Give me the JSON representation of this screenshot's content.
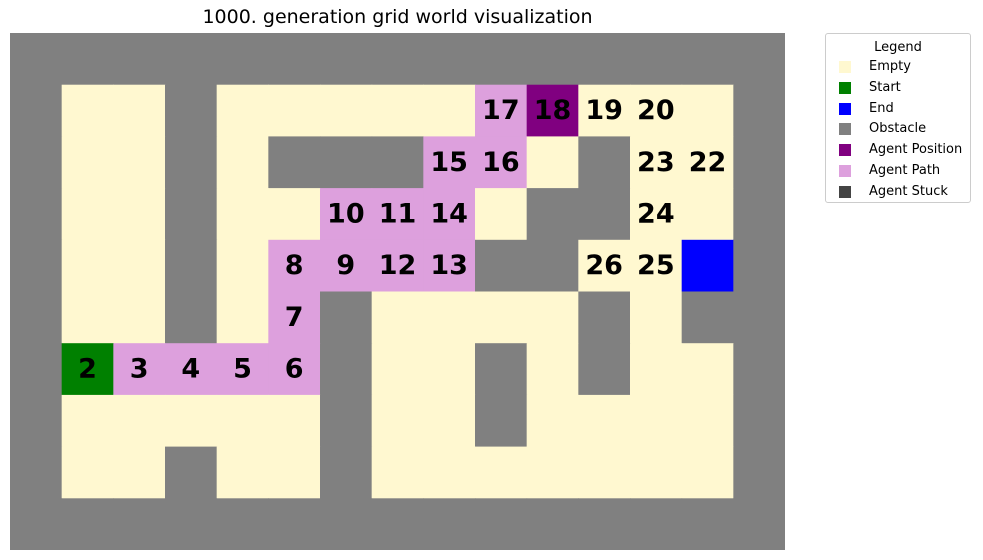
{
  "title": "1000. generation grid world visualization",
  "colors": {
    "empty": "#fff8d0",
    "start": "#008000",
    "end": "#0000ff",
    "obstacle": "#808080",
    "agent_position": "#800080",
    "agent_path": "#dda0dd",
    "agent_stuck": "#444444"
  },
  "grid": {
    "cols": 15,
    "rows": 10,
    "legend_key": {
      "O": "obstacle",
      "E": "empty",
      "S": "start",
      "G": "end",
      "A": "agent_position",
      "P": "agent_path"
    },
    "cells": [
      "OOOOOOOOOOOOOOO",
      "OEEOEEEEEPAEEEO",
      "OEEOEOOOPPEOEEO",
      "OEEOEEPPPEOOEEO",
      "OEEOEPPPPOOEEGO",
      "OEEOEPOEEEEOEOO",
      "OSPPPPOEEOEOEEO",
      "OEEEEEOEEOEEEEO",
      "OEEOEEOEEEEEEEO",
      "OOOOOOOOOOOOOOO"
    ],
    "labels": [
      {
        "row": 1,
        "col": 9,
        "text": "17"
      },
      {
        "row": 1,
        "col": 10,
        "text": "18"
      },
      {
        "row": 1,
        "col": 11,
        "text": "19"
      },
      {
        "row": 1,
        "col": 12,
        "text": "20"
      },
      {
        "row": 2,
        "col": 8,
        "text": "15"
      },
      {
        "row": 2,
        "col": 9,
        "text": "16"
      },
      {
        "row": 2,
        "col": 12,
        "text": "23"
      },
      {
        "row": 2,
        "col": 13,
        "text": "22"
      },
      {
        "row": 3,
        "col": 6,
        "text": "10"
      },
      {
        "row": 3,
        "col": 7,
        "text": "11"
      },
      {
        "row": 3,
        "col": 8,
        "text": "14"
      },
      {
        "row": 3,
        "col": 12,
        "text": "24"
      },
      {
        "row": 4,
        "col": 5,
        "text": "8"
      },
      {
        "row": 4,
        "col": 6,
        "text": "9"
      },
      {
        "row": 4,
        "col": 7,
        "text": "12"
      },
      {
        "row": 4,
        "col": 8,
        "text": "13"
      },
      {
        "row": 4,
        "col": 11,
        "text": "26"
      },
      {
        "row": 4,
        "col": 12,
        "text": "25"
      },
      {
        "row": 5,
        "col": 5,
        "text": "7"
      },
      {
        "row": 6,
        "col": 1,
        "text": "2"
      },
      {
        "row": 6,
        "col": 2,
        "text": "3"
      },
      {
        "row": 6,
        "col": 3,
        "text": "4"
      },
      {
        "row": 6,
        "col": 4,
        "text": "5"
      },
      {
        "row": 6,
        "col": 5,
        "text": "6"
      }
    ]
  },
  "legend": {
    "title": "Legend",
    "items": [
      {
        "label": "Empty",
        "color": "#fff8d0"
      },
      {
        "label": "Start",
        "color": "#008000"
      },
      {
        "label": "End",
        "color": "#0000ff"
      },
      {
        "label": "Obstacle",
        "color": "#808080"
      },
      {
        "label": "Agent Position",
        "color": "#800080"
      },
      {
        "label": "Agent Path",
        "color": "#dda0dd"
      },
      {
        "label": "Agent Stuck",
        "color": "#444444"
      }
    ]
  }
}
